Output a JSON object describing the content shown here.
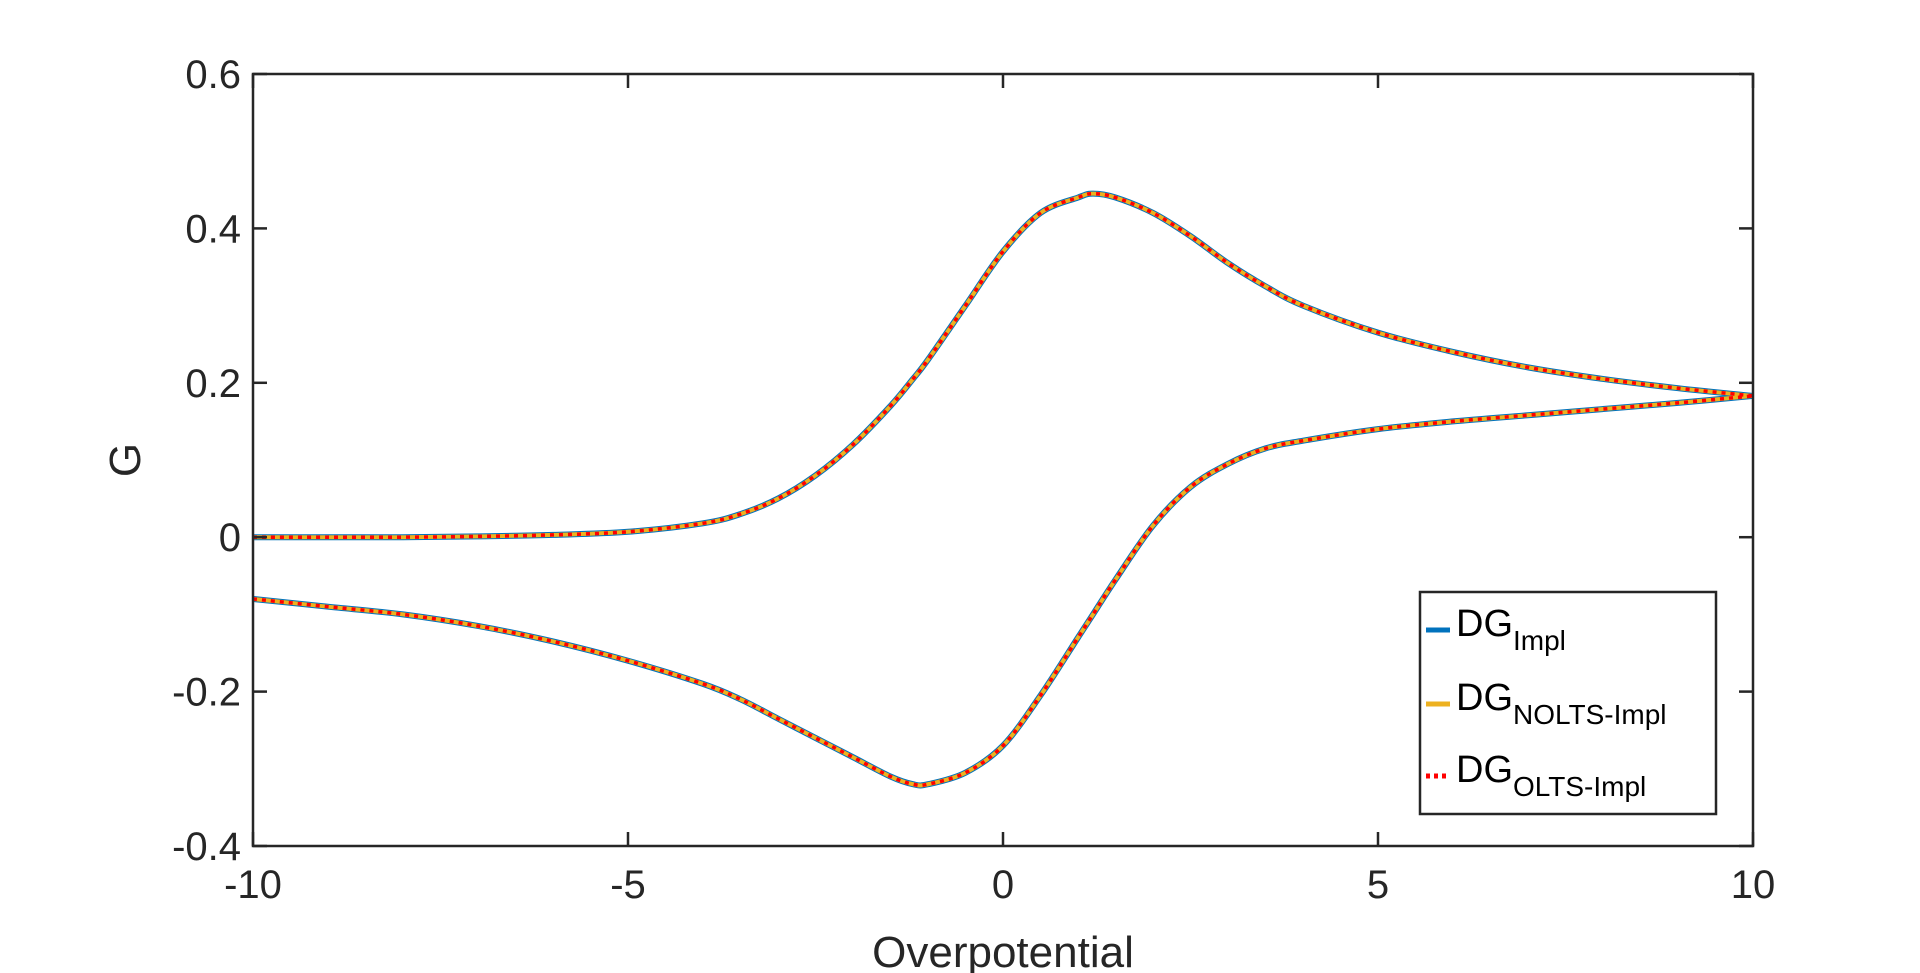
{
  "chart_data": {
    "type": "line",
    "xlabel": "Overpotential",
    "ylabel": "G",
    "xlim": [
      -10,
      10
    ],
    "ylim": [
      -0.4,
      0.6
    ],
    "xticks": [
      -10,
      -5,
      0,
      5,
      10
    ],
    "xtick_labels": [
      "-10",
      "-5",
      "0",
      "5",
      "10"
    ],
    "yticks": [
      -0.4,
      -0.2,
      0,
      0.2,
      0.4,
      0.6
    ],
    "ytick_labels": [
      "-0.4",
      "-0.2",
      "0",
      "0.2",
      "0.4",
      "0.6"
    ],
    "grid": false,
    "legend_position": "bottom-right",
    "legend": [
      {
        "main": "DG",
        "sub": "Impl",
        "color": "#0072BD",
        "style": "solid"
      },
      {
        "main": "DG",
        "sub": "NOLTS-Impl",
        "color": "#EDB120",
        "style": "solid"
      },
      {
        "main": "DG",
        "sub": "OLTS-Impl",
        "color": "#FF0000",
        "style": "dotted"
      }
    ],
    "x": [
      -10,
      -9,
      -8,
      -7,
      -6,
      -5,
      -4,
      -3.5,
      -3,
      -2.5,
      -2,
      -1.5,
      -1.2,
      -1,
      -0.5,
      0,
      0.5,
      1,
      1.2,
      1.5,
      2,
      2.5,
      3,
      3.5,
      4,
      5,
      6,
      7,
      8,
      9,
      10
    ],
    "series": [
      {
        "name": "DG_Impl",
        "color": "#0072BD",
        "branches": [
          [
            0.0,
            0.0,
            0.0,
            0.001,
            0.003,
            0.007,
            0.018,
            0.03,
            0.05,
            0.08,
            0.12,
            0.17,
            0.205,
            0.23,
            0.3,
            0.37,
            0.42,
            0.44,
            0.445,
            0.44,
            0.42,
            0.39,
            0.355,
            0.325,
            0.3,
            0.265,
            0.24,
            0.22,
            0.205,
            0.193,
            0.183
          ],
          [
            -0.08,
            -0.09,
            -0.1,
            -0.115,
            -0.135,
            -0.16,
            -0.19,
            -0.21,
            -0.235,
            -0.26,
            -0.285,
            -0.31,
            -0.32,
            -0.32,
            -0.305,
            -0.27,
            -0.205,
            -0.13,
            -0.1,
            -0.055,
            0.015,
            0.065,
            0.095,
            0.115,
            0.125,
            0.14,
            0.15,
            0.158,
            0.166,
            0.174,
            0.183
          ]
        ]
      },
      {
        "name": "DG_NOLTS-Impl",
        "color": "#EDB120",
        "branches": [
          [
            0.0,
            0.0,
            0.0,
            0.001,
            0.003,
            0.007,
            0.018,
            0.03,
            0.05,
            0.08,
            0.12,
            0.17,
            0.205,
            0.23,
            0.3,
            0.37,
            0.42,
            0.44,
            0.445,
            0.44,
            0.42,
            0.39,
            0.355,
            0.325,
            0.3,
            0.265,
            0.24,
            0.22,
            0.205,
            0.193,
            0.183
          ],
          [
            -0.08,
            -0.09,
            -0.1,
            -0.115,
            -0.135,
            -0.16,
            -0.19,
            -0.21,
            -0.235,
            -0.26,
            -0.285,
            -0.31,
            -0.32,
            -0.32,
            -0.305,
            -0.27,
            -0.205,
            -0.13,
            -0.1,
            -0.055,
            0.015,
            0.065,
            0.095,
            0.115,
            0.125,
            0.14,
            0.15,
            0.158,
            0.166,
            0.174,
            0.183
          ]
        ]
      },
      {
        "name": "DG_OLTS-Impl",
        "color": "#FF0000",
        "branches": [
          [
            0.0,
            0.0,
            0.0,
            0.001,
            0.003,
            0.007,
            0.018,
            0.03,
            0.05,
            0.08,
            0.12,
            0.17,
            0.205,
            0.23,
            0.3,
            0.37,
            0.42,
            0.44,
            0.445,
            0.44,
            0.42,
            0.39,
            0.355,
            0.325,
            0.3,
            0.265,
            0.24,
            0.22,
            0.205,
            0.193,
            0.183
          ],
          [
            -0.08,
            -0.09,
            -0.1,
            -0.115,
            -0.135,
            -0.16,
            -0.19,
            -0.21,
            -0.235,
            -0.26,
            -0.285,
            -0.31,
            -0.32,
            -0.32,
            -0.305,
            -0.27,
            -0.205,
            -0.13,
            -0.1,
            -0.055,
            0.015,
            0.065,
            0.095,
            0.115,
            0.125,
            0.14,
            0.15,
            0.158,
            0.166,
            0.174,
            0.183
          ]
        ]
      }
    ]
  }
}
